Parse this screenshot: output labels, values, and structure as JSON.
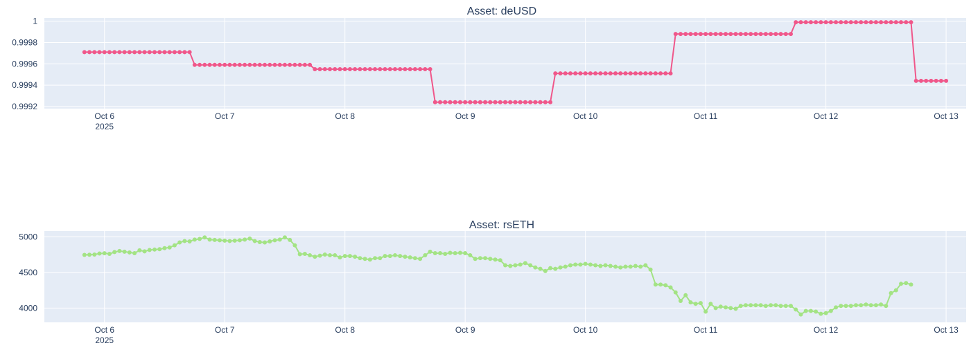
{
  "chart_data": [
    {
      "type": "line",
      "title": "Asset: deUSD",
      "xlabel": "",
      "ylabel": "",
      "x_start": "2025-10-05T20:00",
      "x_step_hours": 1,
      "x_range": [
        "2025-10-05T12:00",
        "2025-10-13T04:00"
      ],
      "x_ticks": [
        {
          "label": "Oct 6",
          "sublabel": "2025",
          "date": "2025-10-06"
        },
        {
          "label": "Oct 7",
          "sublabel": "",
          "date": "2025-10-07"
        },
        {
          "label": "Oct 8",
          "sublabel": "",
          "date": "2025-10-08"
        },
        {
          "label": "Oct 9",
          "sublabel": "",
          "date": "2025-10-09"
        },
        {
          "label": "Oct 10",
          "sublabel": "",
          "date": "2025-10-10"
        },
        {
          "label": "Oct 11",
          "sublabel": "",
          "date": "2025-10-11"
        },
        {
          "label": "Oct 12",
          "sublabel": "",
          "date": "2025-10-12"
        },
        {
          "label": "Oct 13",
          "sublabel": "",
          "date": "2025-10-13"
        }
      ],
      "ylim": [
        0.99918,
        1.00003
      ],
      "y_ticks": [
        {
          "label": "0.9992",
          "value": 0.9992
        },
        {
          "label": "0.9994",
          "value": 0.9994
        },
        {
          "label": "0.9996",
          "value": 0.9996
        },
        {
          "label": "0.9998",
          "value": 0.9998
        },
        {
          "label": "1",
          "value": 1.0
        }
      ],
      "grid": true,
      "color": "#f0578a",
      "series": [
        {
          "name": "",
          "values": [
            0.99971,
            0.99971,
            0.99971,
            0.99971,
            0.99971,
            0.99971,
            0.99971,
            0.99971,
            0.99971,
            0.99971,
            0.99971,
            0.99971,
            0.99971,
            0.99971,
            0.99971,
            0.99971,
            0.99971,
            0.99971,
            0.99971,
            0.99971,
            0.99971,
            0.99971,
            0.99959,
            0.99959,
            0.99959,
            0.99959,
            0.99959,
            0.99959,
            0.99959,
            0.99959,
            0.99959,
            0.99959,
            0.99959,
            0.99959,
            0.99959,
            0.99959,
            0.99959,
            0.99959,
            0.99959,
            0.99959,
            0.99959,
            0.99959,
            0.99959,
            0.99959,
            0.99959,
            0.99959,
            0.99955,
            0.99955,
            0.99955,
            0.99955,
            0.99955,
            0.99955,
            0.99955,
            0.99955,
            0.99955,
            0.99955,
            0.99955,
            0.99955,
            0.99955,
            0.99955,
            0.99955,
            0.99955,
            0.99955,
            0.99955,
            0.99955,
            0.99955,
            0.99955,
            0.99955,
            0.99955,
            0.99955,
            0.99924,
            0.99924,
            0.99924,
            0.99924,
            0.99924,
            0.99924,
            0.99924,
            0.99924,
            0.99924,
            0.99924,
            0.99924,
            0.99924,
            0.99924,
            0.99924,
            0.99924,
            0.99924,
            0.99924,
            0.99924,
            0.99924,
            0.99924,
            0.99924,
            0.99924,
            0.99924,
            0.99924,
            0.99951,
            0.99951,
            0.99951,
            0.99951,
            0.99951,
            0.99951,
            0.99951,
            0.99951,
            0.99951,
            0.99951,
            0.99951,
            0.99951,
            0.99951,
            0.99951,
            0.99951,
            0.99951,
            0.99951,
            0.99951,
            0.99951,
            0.99951,
            0.99951,
            0.99951,
            0.99951,
            0.99951,
            0.99988,
            0.99988,
            0.99988,
            0.99988,
            0.99988,
            0.99988,
            0.99988,
            0.99988,
            0.99988,
            0.99988,
            0.99988,
            0.99988,
            0.99988,
            0.99988,
            0.99988,
            0.99988,
            0.99988,
            0.99988,
            0.99988,
            0.99988,
            0.99988,
            0.99988,
            0.99988,
            0.99988,
            0.99999,
            0.99999,
            0.99999,
            0.99999,
            0.99999,
            0.99999,
            0.99999,
            0.99999,
            0.99999,
            0.99999,
            0.99999,
            0.99999,
            0.99999,
            0.99999,
            0.99999,
            0.99999,
            0.99999,
            0.99999,
            0.99999,
            0.99999,
            0.99999,
            0.99999,
            0.99999,
            0.99999,
            0.99944,
            0.99944,
            0.99944,
            0.99944,
            0.99944,
            0.99944,
            0.99944
          ]
        }
      ]
    },
    {
      "type": "line",
      "title": "Asset: rsETH",
      "xlabel": "",
      "ylabel": "",
      "x_start": "2025-10-05T20:00",
      "x_step_hours": 1,
      "x_range": [
        "2025-10-05T12:00",
        "2025-10-13T04:00"
      ],
      "x_ticks": [
        {
          "label": "Oct 6",
          "sublabel": "2025",
          "date": "2025-10-06"
        },
        {
          "label": "Oct 7",
          "sublabel": "",
          "date": "2025-10-07"
        },
        {
          "label": "Oct 8",
          "sublabel": "",
          "date": "2025-10-08"
        },
        {
          "label": "Oct 9",
          "sublabel": "",
          "date": "2025-10-09"
        },
        {
          "label": "Oct 10",
          "sublabel": "",
          "date": "2025-10-10"
        },
        {
          "label": "Oct 11",
          "sublabel": "",
          "date": "2025-10-11"
        },
        {
          "label": "Oct 12",
          "sublabel": "",
          "date": "2025-10-12"
        },
        {
          "label": "Oct 13",
          "sublabel": "",
          "date": "2025-10-13"
        }
      ],
      "ylim": [
        3800,
        5080
      ],
      "y_ticks": [
        {
          "label": "4000",
          "value": 4000
        },
        {
          "label": "4500",
          "value": 4500
        },
        {
          "label": "5000",
          "value": 5000
        }
      ],
      "grid": true,
      "color": "#a3e384",
      "series": [
        {
          "name": "",
          "values": [
            4745,
            4748,
            4750,
            4765,
            4768,
            4760,
            4785,
            4800,
            4790,
            4780,
            4770,
            4810,
            4795,
            4815,
            4820,
            4825,
            4840,
            4850,
            4880,
            4920,
            4940,
            4935,
            4960,
            4970,
            4990,
            4960,
            4955,
            4950,
            4945,
            4940,
            4945,
            4950,
            4960,
            4975,
            4940,
            4925,
            4920,
            4935,
            4950,
            4960,
            4990,
            4955,
            4880,
            4755,
            4760,
            4740,
            4720,
            4735,
            4750,
            4740,
            4740,
            4710,
            4730,
            4730,
            4720,
            4700,
            4690,
            4680,
            4700,
            4700,
            4730,
            4730,
            4740,
            4730,
            4720,
            4710,
            4700,
            4690,
            4740,
            4790,
            4770,
            4770,
            4760,
            4775,
            4770,
            4775,
            4770,
            4740,
            4690,
            4700,
            4700,
            4690,
            4680,
            4670,
            4600,
            4590,
            4600,
            4610,
            4630,
            4600,
            4570,
            4550,
            4520,
            4560,
            4550,
            4570,
            4580,
            4600,
            4610,
            4610,
            4620,
            4610,
            4600,
            4590,
            4600,
            4590,
            4580,
            4570,
            4580,
            4580,
            4590,
            4580,
            4600,
            4540,
            4330,
            4330,
            4320,
            4290,
            4220,
            4100,
            4180,
            4080,
            4060,
            4070,
            3950,
            4060,
            4000,
            4020,
            4010,
            4000,
            3990,
            4030,
            4040,
            4040,
            4040,
            4040,
            4030,
            4040,
            4040,
            4030,
            4030,
            4030,
            3980,
            3910,
            3960,
            3960,
            3950,
            3920,
            3930,
            3960,
            4010,
            4030,
            4030,
            4030,
            4040,
            4040,
            4050,
            4040,
            4040,
            4050,
            4030,
            4210,
            4250,
            4340,
            4350,
            4330
          ]
        }
      ]
    }
  ]
}
